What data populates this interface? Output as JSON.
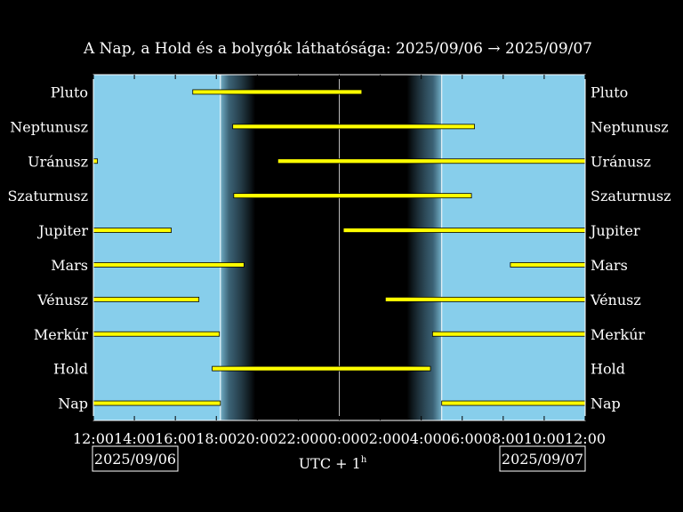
{
  "chart_data": {
    "type": "gantt",
    "title": "A Nap, a Hold és a bolygók láthatósága: 2025/09/06 → 2025/09/07",
    "xlabel": "UTC + 1",
    "xlabel_superscript": "h",
    "x_ticks": [
      "12:00",
      "14:00",
      "16:00",
      "18:00",
      "20:00",
      "22:00",
      "00:00",
      "02:00",
      "04:00",
      "06:00",
      "08:00",
      "10:00",
      "12:00"
    ],
    "xlim": [
      0,
      24
    ],
    "date_start": "2025/09/06",
    "date_end": "2025/09/07",
    "grid": false,
    "colors": {
      "background": "#000000",
      "daylight": "#87CEEB",
      "night": "#000000",
      "bar": "#FFFF00",
      "bar_outline": "#000000",
      "text": "#FFFFFF"
    },
    "twilight": {
      "sunset": 6.2,
      "evening_dark": 7.9,
      "morning_dark": 15.3,
      "sunrise": 17.0
    },
    "categories": [
      "Pluto",
      "Neptunusz",
      "Uránusz",
      "Szaturnusz",
      "Jupiter",
      "Mars",
      "Vénusz",
      "Merkúr",
      "Hold",
      "Nap"
    ],
    "series": [
      {
        "name": "Pluto",
        "intervals": [
          [
            4.85,
            13.1
          ]
        ]
      },
      {
        "name": "Neptunusz",
        "intervals": [
          [
            6.8,
            18.6
          ]
        ]
      },
      {
        "name": "Uránusz",
        "intervals": [
          [
            0.0,
            0.2
          ],
          [
            9.0,
            24.0
          ]
        ]
      },
      {
        "name": "Szaturnusz",
        "intervals": [
          [
            6.85,
            18.45
          ]
        ]
      },
      {
        "name": "Jupiter",
        "intervals": [
          [
            0.0,
            3.8
          ],
          [
            12.2,
            24.0
          ]
        ]
      },
      {
        "name": "Mars",
        "intervals": [
          [
            0.0,
            7.35
          ],
          [
            20.35,
            24.0
          ]
        ]
      },
      {
        "name": "Vénusz",
        "intervals": [
          [
            0.0,
            5.15
          ],
          [
            14.25,
            24.0
          ]
        ]
      },
      {
        "name": "Merkúr",
        "intervals": [
          [
            0.0,
            6.15
          ],
          [
            16.55,
            24.0
          ]
        ]
      },
      {
        "name": "Hold",
        "intervals": [
          [
            5.8,
            16.45
          ]
        ]
      },
      {
        "name": "Nap",
        "intervals": [
          [
            0.0,
            6.2
          ],
          [
            17.0,
            24.0
          ]
        ]
      }
    ]
  }
}
